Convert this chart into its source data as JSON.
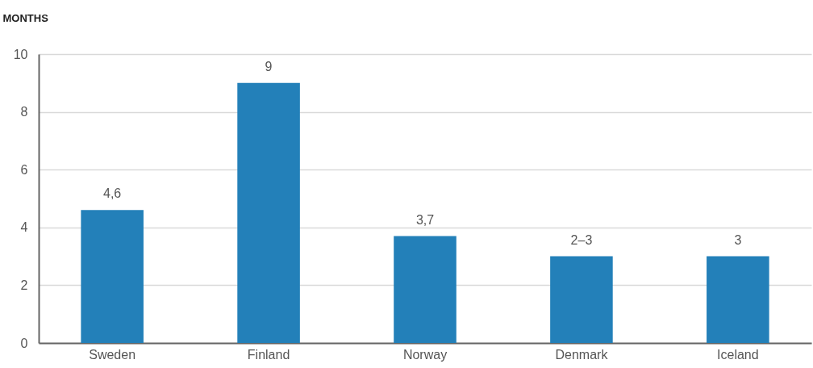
{
  "chart_data": {
    "type": "bar",
    "ylabel": "MONTHS",
    "categories": [
      "Sweden",
      "Finland",
      "Norway",
      "Denmark",
      "Iceland"
    ],
    "values": [
      4.6,
      9,
      3.7,
      3,
      3
    ],
    "value_labels": [
      "4,6",
      "9",
      "3,7",
      "2–3",
      "3"
    ],
    "color": "#2380b9",
    "ylim": [
      0,
      10
    ],
    "yticks": [
      0,
      2,
      4,
      6,
      8,
      10
    ],
    "grid": "y"
  }
}
